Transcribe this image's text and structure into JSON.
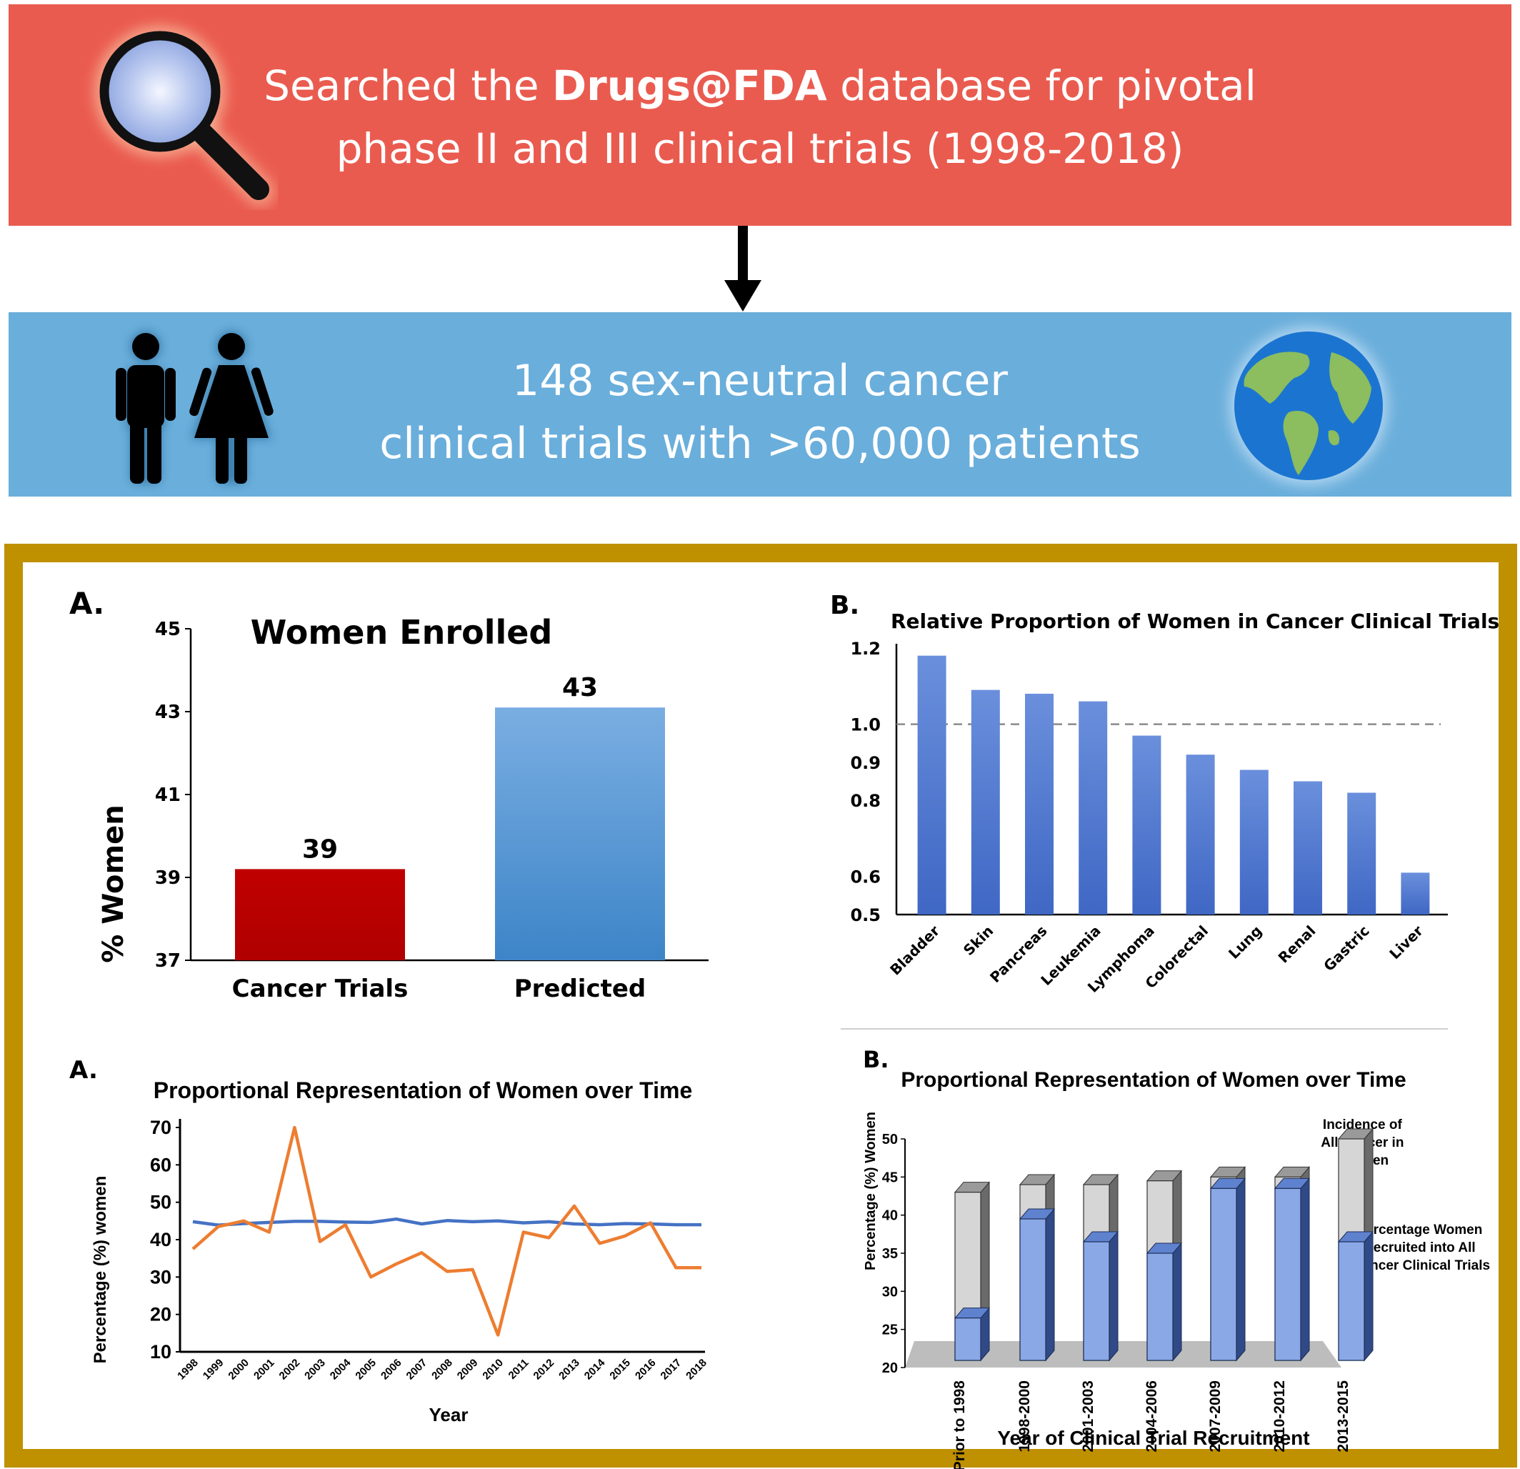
{
  "header": {
    "line1_pre": "Searched the ",
    "line1_bold": "Drugs@FDA",
    "line1_post": " database for pivotal",
    "line2": "phase II and III clinical trials (1998-2018)"
  },
  "summary": {
    "line1": "148 sex-neutral cancer",
    "line2": "clinical trials with >60,000 patients"
  },
  "icons": {
    "search": "magnifying-glass-icon",
    "people": "man-woman-icon",
    "globe": "globe-icon"
  },
  "colors": {
    "header_red": "#ea5b4f",
    "summary_blue": "#6aaedb",
    "frame_gold": "#bf9000",
    "bar_red": "#c00000",
    "bar_blue": "#5b9bd5",
    "bar_royal": "#4472c4",
    "line_blue": "#4472c4",
    "line_orange": "#ed7d31"
  },
  "chart_data": [
    {
      "id": "women-enrolled",
      "panel": "A.",
      "type": "bar",
      "title": "Women Enrolled",
      "ylabel": "% Women",
      "xlabel": "",
      "ylim": [
        37,
        45
      ],
      "yticks": [
        37,
        39,
        41,
        43,
        45
      ],
      "categories": [
        "Cancer Trials",
        "Predicted"
      ],
      "values": [
        39.2,
        43.1
      ],
      "data_labels": [
        "39",
        "43"
      ],
      "grid": false
    },
    {
      "id": "relative-proportion",
      "panel": "B.",
      "type": "bar",
      "title": "Relative Proportion of Women in Cancer Clinical Trials",
      "ylabel": "",
      "xlabel": "",
      "ylim": [
        0.5,
        1.2
      ],
      "yticks": [
        "0.5",
        "0.6",
        "0.8",
        "0.9",
        "1.0",
        "1.2"
      ],
      "reference_line": 1.0,
      "categories": [
        "Bladder",
        "Skin",
        "Pancreas",
        "Leukemia",
        "Lymphoma",
        "Colorectal",
        "Lung",
        "Renal",
        "Gastric",
        "Liver"
      ],
      "values": [
        1.18,
        1.09,
        1.08,
        1.06,
        0.97,
        0.92,
        0.88,
        0.85,
        0.82,
        0.61
      ],
      "grid": false
    },
    {
      "id": "representation-line",
      "panel": "A.",
      "type": "line",
      "title": "Proportional Representation of Women over Time",
      "xlabel": "Year",
      "ylabel": "Percentage (%) women",
      "ylim": [
        10,
        70
      ],
      "yticks": [
        10,
        20,
        30,
        40,
        50,
        60,
        70
      ],
      "x": [
        "1998",
        "1999",
        "2000",
        "2001",
        "2002",
        "2003",
        "2004",
        "2005",
        "2006",
        "2007",
        "2008",
        "2009",
        "2010",
        "2011",
        "2012",
        "2013",
        "2014",
        "2015",
        "2016",
        "2017",
        "2018"
      ],
      "series": [
        {
          "values": [
            44.8,
            43.9,
            44.3,
            44.6,
            44.9,
            44.9,
            44.7,
            44.6,
            45.5,
            44.2,
            45.1,
            44.8,
            45.0,
            44.5,
            44.8,
            44.2,
            44.0,
            44.3,
            44.2,
            44.0,
            44.0
          ]
        },
        {
          "values": [
            37.5,
            43.5,
            45.0,
            42.0,
            70.0,
            39.5,
            44.0,
            30.0,
            33.5,
            36.5,
            31.5,
            32.0,
            14.5,
            42.0,
            40.5,
            49.0,
            39.0,
            41.0,
            44.5,
            32.5,
            32.5
          ]
        }
      ],
      "grid": false
    },
    {
      "id": "representation-3d-bars",
      "panel": "B.",
      "type": "bar",
      "title": "Proportional Representation of Women over Time",
      "xlabel": "Year of Clinical Trial Recruitment",
      "ylabel": "Percentage (%) Women",
      "ylim": [
        20,
        50
      ],
      "yticks": [
        20,
        25,
        30,
        35,
        40,
        45,
        50
      ],
      "categories": [
        "Prior to 1998",
        "1998-2000",
        "2001-2003",
        "2004-2006",
        "2007-2009",
        "2010-2012",
        "2013-2015"
      ],
      "series": [
        {
          "name": "Percentage Women Recruited into All Cancer Clinical Trials",
          "values": [
            26.5,
            39.5,
            36.5,
            35.0,
            43.5,
            43.5,
            36.5
          ]
        },
        {
          "name": "Incidence of All Cancer in Women",
          "values": [
            43.0,
            44.0,
            44.0,
            44.5,
            45.0,
            45.0,
            50.0
          ]
        }
      ],
      "annotations": [
        "Incidence of All Cancer in Women",
        "Percentage Women Recruited into All Cancer Clinical Trials"
      ],
      "grid": false
    }
  ]
}
